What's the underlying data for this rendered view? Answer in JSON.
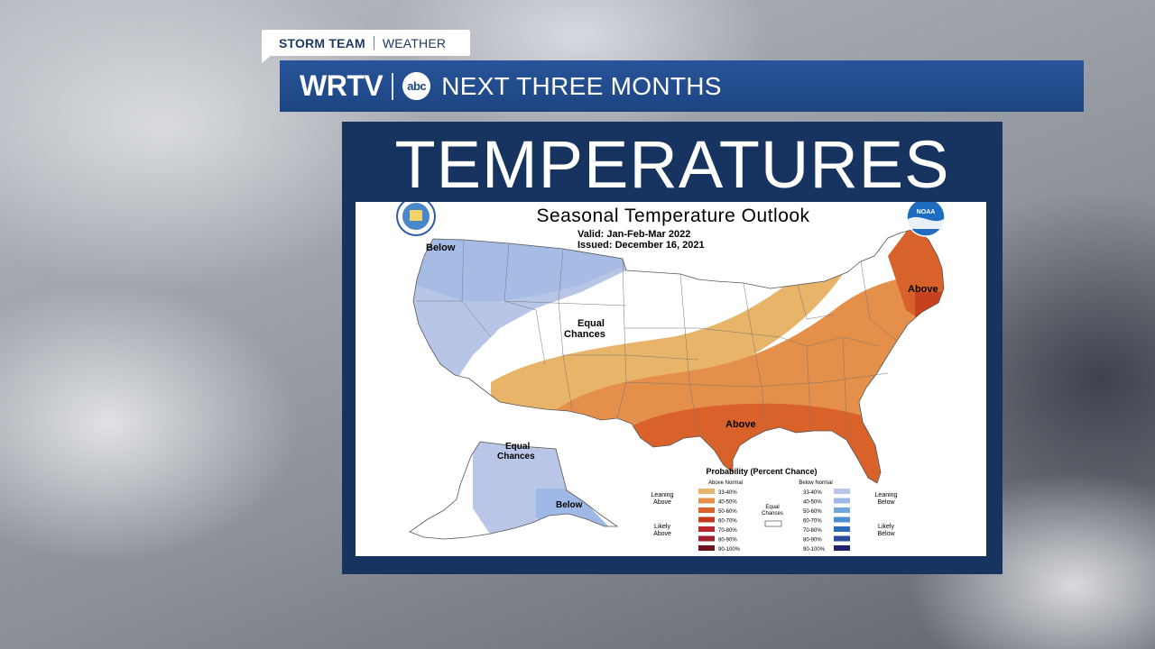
{
  "header": {
    "tag_primary": "STORM TEAM",
    "tag_secondary": "WEATHER",
    "station": "WRTV",
    "network_logo": "abc",
    "banner_title": "NEXT THREE MONTHS"
  },
  "panel": {
    "title": "TEMPERATURES"
  },
  "map": {
    "title": "Seasonal Temperature Outlook",
    "valid": "Valid:   Jan-Feb-Mar 2022",
    "issued": "Issued:   December 16, 2021",
    "region_labels": {
      "below_nw": "Below",
      "equal_chances_line1": "Equal",
      "equal_chances_line2": "Chances",
      "above_ne": "Above",
      "above_se": "Above",
      "ak_equal_line1": "Equal",
      "ak_equal_line2": "Chances",
      "ak_below": "Below"
    },
    "logos": {
      "left": "commerce-seal",
      "right": "noaa-logo",
      "noaa_text": "NOAA"
    },
    "legend": {
      "title": "Probability (Percent Chance)",
      "above_header": "Above Normal",
      "below_header": "Below Normal",
      "leaning_above": [
        "Leaning",
        "Above"
      ],
      "likely_above": [
        "Likely",
        "Above"
      ],
      "leaning_below": [
        "Leaning",
        "Below"
      ],
      "likely_below": [
        "Likely",
        "Below"
      ],
      "equal_chances": [
        "Equal",
        "Chances"
      ],
      "ranges": [
        "33-40%",
        "40-50%",
        "50-60%",
        "60-70%",
        "70-80%",
        "80-90%",
        "90-100%"
      ],
      "above_colors": [
        "#e8b46a",
        "#e5904a",
        "#d9622b",
        "#c23a1c",
        "#b82630",
        "#9e1f2e",
        "#6e1420"
      ],
      "below_colors": [
        "#b9c6e8",
        "#9fb9e6",
        "#72a6dc",
        "#4b8fd2",
        "#2f6bb8",
        "#2a4b98",
        "#1d2468"
      ]
    }
  }
}
